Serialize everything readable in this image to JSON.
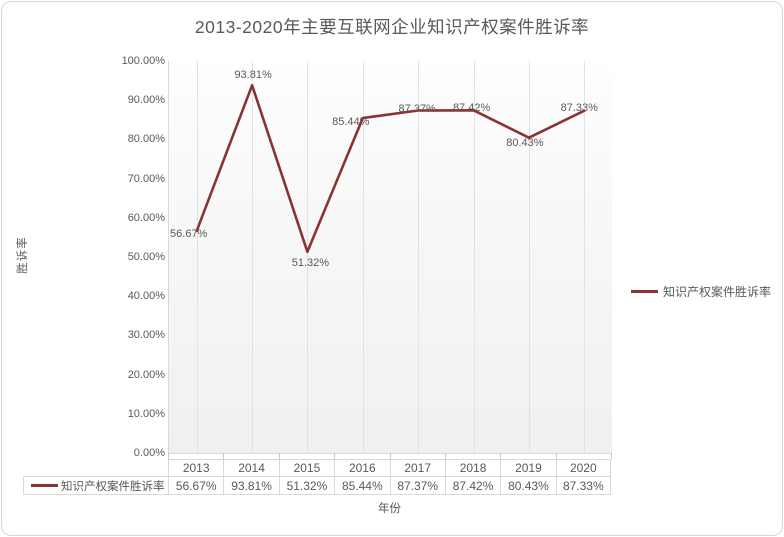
{
  "title": "2013-2020年主要互联网企业知识产权案件胜诉率",
  "chart_data": {
    "type": "line",
    "title": "2013-2020年主要互联网企业知识产权案件胜诉率",
    "xlabel": "年份",
    "ylabel": "胜诉率",
    "categories": [
      "2013",
      "2014",
      "2015",
      "2016",
      "2017",
      "2018",
      "2019",
      "2020"
    ],
    "series": [
      {
        "name": "知识产权案件胜诉率",
        "values": [
          56.67,
          93.81,
          51.32,
          85.44,
          87.37,
          87.42,
          80.43,
          87.33
        ],
        "labels": [
          "56.67%",
          "93.81%",
          "51.32%",
          "85.44%",
          "87.37%",
          "87.42%",
          "80.43%",
          "87.33%"
        ],
        "color": "#8b3232"
      }
    ],
    "y_axis": {
      "min": 0,
      "max": 100,
      "ticks": [
        "0.00%",
        "10.00%",
        "20.00%",
        "30.00%",
        "40.00%",
        "50.00%",
        "60.00%",
        "70.00%",
        "80.00%",
        "90.00%",
        "100.00%"
      ]
    },
    "grid": "vertical-only",
    "legend": {
      "position": "right",
      "entries": [
        "知识产权案件胜诉率"
      ]
    },
    "data_table_shown": true
  },
  "colors": {
    "series_line": "#8b3232",
    "text_gray": "#595959",
    "gridline": "#e2e2e2",
    "border": "#d9d9d9"
  }
}
